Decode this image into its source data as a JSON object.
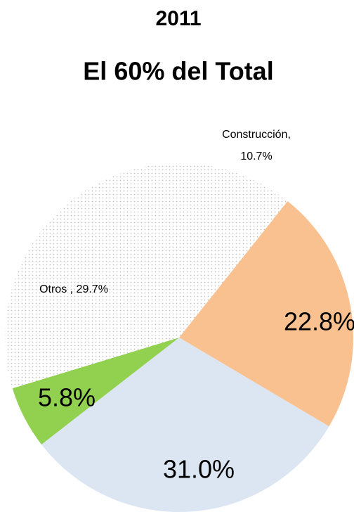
{
  "chart_data": {
    "type": "pie",
    "title": "2011",
    "subtitle": "El 60% del Total",
    "categories": [
      "Construcción,",
      null,
      null,
      null,
      "Otros ,"
    ],
    "values": [
      10.7,
      22.8,
      31.0,
      5.8,
      29.7
    ],
    "value_labels": [
      "10.7%",
      "22.8%",
      "31.0%",
      "5.8%",
      "29.7%"
    ],
    "colors": [
      "#d0d0d0",
      "#f9c090",
      "#dce6f2",
      "#92d050",
      "#d0d0d0"
    ],
    "patterned": [
      true,
      false,
      false,
      false,
      true
    ]
  }
}
